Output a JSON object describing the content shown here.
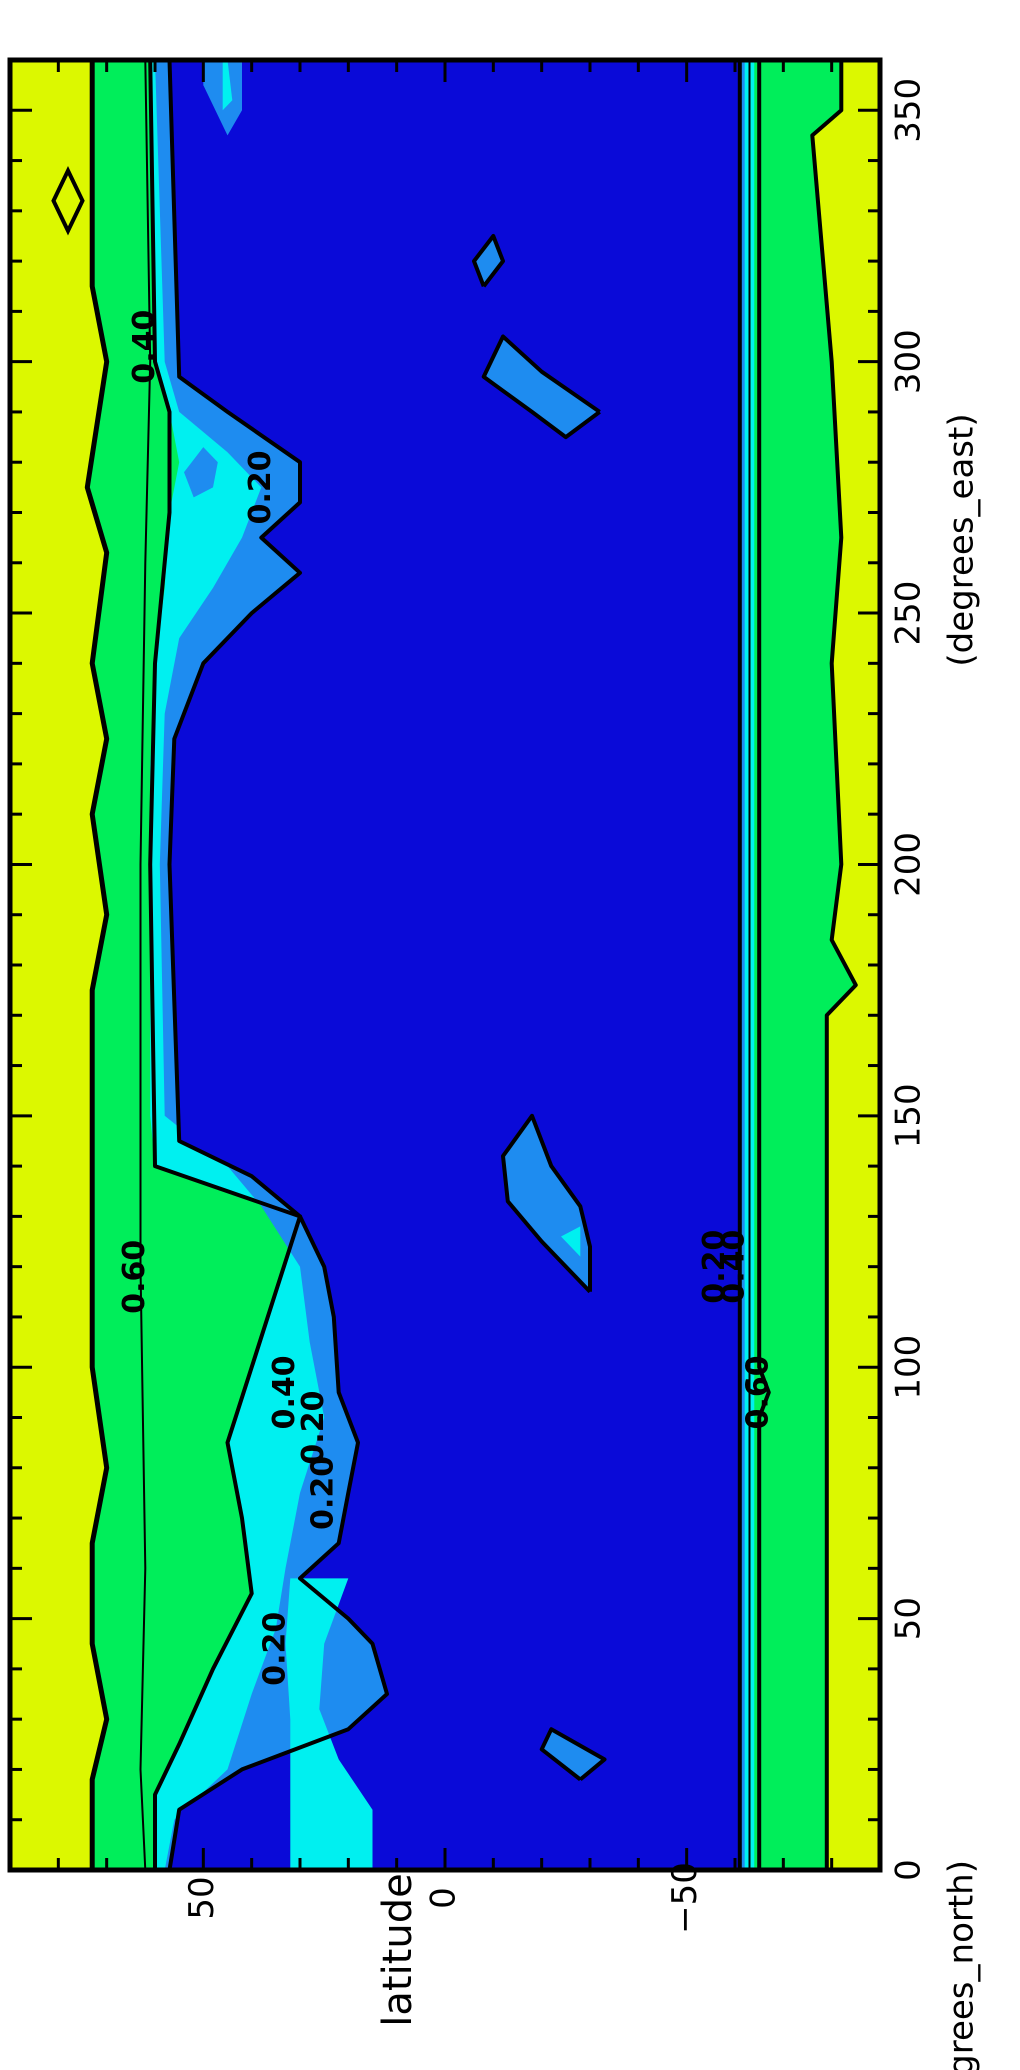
{
  "chart_data": {
    "type": "heatmap",
    "orientation": "rotated 90 degrees clockwise",
    "xlabel": "",
    "ylabel": "latitude",
    "x_units": "(degrees_east)",
    "y_units": "(degrees_north)",
    "xlim": [
      0,
      360
    ],
    "ylim": [
      -90,
      90
    ],
    "x_ticks": [
      0,
      50,
      100,
      150,
      200,
      250,
      300,
      350
    ],
    "y_ticks": [
      50,
      0,
      -50
    ],
    "y_tick_labels": [
      "50",
      "0",
      "−50"
    ],
    "contour_levels": [
      0.2,
      0.4,
      0.6,
      0.8
    ],
    "colors": {
      "level_0_0.2": "#0a0ad8",
      "level_0.2_0.4": "#1e8cf0",
      "level_0.4_0.6": "#00f0f0",
      "level_0.6_0.8": "#00ee5a",
      "level_0.8_1.0": "#dcf800"
    },
    "contour_labels": [
      {
        "text": "0.60",
        "lon": 118,
        "lat": 64
      },
      {
        "text": "0.40",
        "lon": 95,
        "lat": 33
      },
      {
        "text": "0.20",
        "lon": 88,
        "lat": 27
      },
      {
        "text": "0.20",
        "lon": 44,
        "lat": 35
      },
      {
        "text": "0.20",
        "lon": 75,
        "lat": 25
      },
      {
        "text": "0.40",
        "lon": 303,
        "lat": 62
      },
      {
        "text": "0.20",
        "lon": 275,
        "lat": 38
      },
      {
        "text": "0.60",
        "lon": 95,
        "lat": -65
      },
      {
        "text": "0.40",
        "lon": 120,
        "lat": -60
      },
      {
        "text": "0.20",
        "lon": 120,
        "lat": -56
      }
    ]
  }
}
